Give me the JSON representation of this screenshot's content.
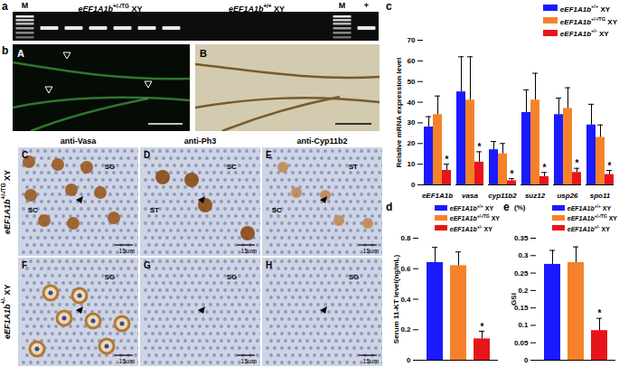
{
  "figure": {
    "panel_labels": [
      "a",
      "b",
      "c",
      "d",
      "e"
    ],
    "gel": {
      "left_marker": "M",
      "groups": [
        "eEF1A1b+/-/TG XY",
        "eEF1A1b+/+ XY"
      ],
      "right_labels": [
        "M",
        "+"
      ]
    },
    "images": [
      "A",
      "B"
    ],
    "histology": {
      "columns": [
        "anti-Vasa",
        "anti-Ph3",
        "anti-Cyp11b2"
      ],
      "rows": [
        "eEF1A1b+/-/TG XY",
        "eEF1A1b+/- XY"
      ],
      "panels": [
        {
          "letter": "C",
          "labels": [
            "SG",
            "SC"
          ],
          "scale": "15um"
        },
        {
          "letter": "D",
          "labels": [
            "SC",
            "ST"
          ],
          "scale": "15um"
        },
        {
          "letter": "E",
          "labels": [
            "ST",
            "SC"
          ],
          "scale": "15um"
        },
        {
          "letter": "F",
          "labels": [
            "SG"
          ],
          "scale": "15um"
        },
        {
          "letter": "G",
          "labels": [
            "SG"
          ],
          "scale": "15um"
        },
        {
          "letter": "H",
          "labels": [
            "SG"
          ],
          "scale": "15um"
        }
      ]
    }
  },
  "chart_data": [
    {
      "type": "bar",
      "ylabel": "Relative mRNA expression level",
      "categories": [
        "eEF1A1b",
        "vasa",
        "cyp11b2",
        "suz12",
        "usp26",
        "spo11"
      ],
      "series": [
        {
          "name": "eEF1A1b+/+ XY",
          "color": "#1a1aff",
          "values": [
            28,
            45,
            17,
            35,
            34,
            29
          ],
          "errors": [
            5,
            17,
            4,
            11,
            8,
            10
          ]
        },
        {
          "name": "eEF1A1b+/-/TG XY",
          "color": "#f5822a",
          "values": [
            34,
            41,
            15,
            41,
            37,
            23
          ],
          "errors": [
            9,
            21,
            5,
            13,
            10,
            6
          ]
        },
        {
          "name": "eEF1A1b+/- XY",
          "color": "#e8141b",
          "values": [
            7,
            11,
            2,
            4,
            6,
            5
          ],
          "errors": [
            3,
            5,
            1,
            2,
            2,
            2
          ],
          "significance": [
            "*",
            "*",
            "*",
            "*",
            "*",
            "*"
          ]
        }
      ],
      "ylim": [
        0,
        70
      ],
      "yticks": [
        0,
        10,
        20,
        30,
        40,
        50,
        60,
        70
      ],
      "legend": "top-right"
    },
    {
      "type": "bar",
      "ylabel": "Serum 11-KT level(ng/mL)",
      "categories": [
        "eEF1A1b+/+ XY",
        "eEF1A1b+/-/TG XY",
        "eEF1A1b+/- XY"
      ],
      "values": [
        0.64,
        0.62,
        0.14
      ],
      "errors": [
        0.1,
        0.09,
        0.05
      ],
      "significance": [
        null,
        null,
        "*"
      ],
      "colors": [
        "#1a1aff",
        "#f5822a",
        "#e8141b"
      ],
      "ylim": [
        0,
        0.8
      ],
      "yticks": [
        0,
        0.2,
        0.4,
        0.6,
        0.8
      ],
      "legend": "top-right",
      "tick_labels": "y"
    },
    {
      "type": "bar",
      "ylabel": "GSI",
      "annotations": [
        "(%)"
      ],
      "categories": [
        "eEF1A1b+/+ XY",
        "eEF1A1b+/-/TG XY",
        "eEF1A1b+/- XY"
      ],
      "values": [
        0.275,
        0.28,
        0.085
      ],
      "errors": [
        0.04,
        0.045,
        0.035
      ],
      "significance": [
        null,
        null,
        "*"
      ],
      "colors": [
        "#1a1aff",
        "#f5822a",
        "#e8141b"
      ],
      "ylim": [
        0,
        0.35
      ],
      "yticks": [
        0,
        0.05,
        0.1,
        0.15,
        0.2,
        0.25,
        0.3,
        0.35
      ],
      "legend": "top-right",
      "tick_labels": "y"
    }
  ]
}
